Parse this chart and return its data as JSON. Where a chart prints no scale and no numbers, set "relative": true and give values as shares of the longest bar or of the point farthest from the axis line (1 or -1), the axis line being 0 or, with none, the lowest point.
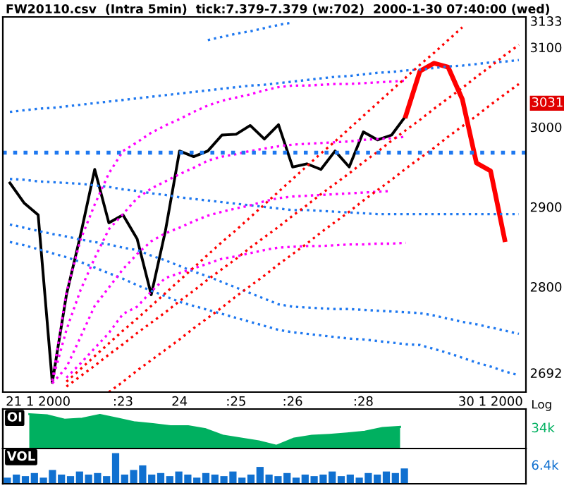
{
  "chart_data": [
    {
      "type": "line",
      "title": "FW20110.csv  (Intra 5min)  tick:7.379-7.379 (w:702)  2000-1-30 07:40:00 (wed)",
      "categories": [
        null,
        null,
        "21 1 2000",
        null,
        null,
        null,
        null,
        null,
        ":23",
        null,
        null,
        null,
        "24",
        null,
        null,
        null,
        ":25",
        null,
        null,
        null,
        ":26",
        null,
        null,
        null,
        null,
        ":28",
        null,
        null,
        null,
        null,
        null,
        null,
        null,
        null,
        "30 1 2000",
        null,
        null
      ],
      "ylim": [
        2668,
        3138
      ],
      "yticks": [
        3133,
        3100,
        3000,
        2900,
        2800,
        2692
      ],
      "grid": false,
      "legend": false,
      "marker": "none",
      "ref_lines": [
        {
          "axis": "y",
          "value": 2968,
          "color": "#1e78f0",
          "line_style": "dotted"
        }
      ],
      "annotations": [
        "3031",
        "Log"
      ],
      "series": [
        {
          "color": "#000000",
          "line_style": "solid",
          "values": [
            2930,
            2905,
            2890,
            2680,
            2790,
            2865,
            2947,
            2880,
            2890,
            2860,
            2790,
            2870,
            2970,
            2963,
            2970,
            2990,
            2991,
            3002,
            2985,
            3003,
            2950,
            2954,
            2947,
            2970,
            2950,
            2994,
            2984,
            2990,
            3014,
            null,
            null,
            null,
            null,
            null,
            null,
            null,
            null
          ]
        },
        {
          "color": "#ff0000",
          "line_style": "solid",
          "values": [
            null,
            null,
            null,
            null,
            null,
            null,
            null,
            null,
            null,
            null,
            null,
            null,
            null,
            null,
            null,
            null,
            null,
            null,
            null,
            null,
            null,
            null,
            null,
            null,
            null,
            null,
            null,
            null,
            3014,
            3070,
            3080,
            3075,
            3035,
            2955,
            2945,
            2859,
            null
          ]
        },
        {
          "color": "#1e78f0",
          "line_style": "dotted",
          "values": [
            3019,
            3021,
            3023,
            3024,
            3026,
            3028,
            3030,
            3032,
            3034,
            3036,
            3038,
            3040,
            3042,
            3044,
            3046,
            3048,
            3050,
            3052,
            3053,
            3055,
            3057,
            3059,
            3061,
            3063,
            3064,
            3066,
            3068,
            3069,
            3071,
            3072,
            3074,
            3076,
            3077,
            3079,
            3081,
            3082,
            3084
          ]
        },
        {
          "color": "#1e78f0",
          "line_style": "dotted",
          "values": [
            null,
            null,
            null,
            null,
            null,
            null,
            null,
            null,
            null,
            null,
            null,
            null,
            null,
            null,
            3109,
            3113,
            3117,
            3120,
            3124,
            3128,
            3131,
            null,
            null,
            null,
            null,
            null,
            null,
            null,
            null,
            null,
            null,
            null,
            null,
            null,
            null,
            null,
            null
          ]
        },
        {
          "color": "#1e78f0",
          "line_style": "dotted",
          "values": [
            2935,
            2934,
            2932,
            2931,
            2930,
            2929,
            2927,
            2925,
            2922,
            2920,
            2917,
            2915,
            2912,
            2910,
            2908,
            2906,
            2904,
            2902,
            2900,
            2898,
            2896,
            2896,
            2895,
            2894,
            2893,
            2892,
            2891,
            2891,
            2891,
            2891,
            2891,
            2891,
            2891,
            2891,
            2891,
            2891,
            2891
          ]
        },
        {
          "color": "#1e78f0",
          "line_style": "dotted",
          "values": [
            2878,
            2874,
            2870,
            2866,
            2863,
            2859,
            2856,
            2853,
            2849,
            2846,
            2839,
            2833,
            2826,
            2819,
            2813,
            2806,
            2799,
            2792,
            2785,
            2778,
            2775,
            2774,
            2773,
            2772,
            2772,
            2771,
            2770,
            2769,
            2768,
            2767,
            2764,
            2760,
            2756,
            2753,
            2749,
            2745,
            2741
          ]
        },
        {
          "color": "#1e78f0",
          "line_style": "dotted",
          "values": [
            2856,
            2852,
            2847,
            2842,
            2837,
            2831,
            2824,
            2817,
            2810,
            2802,
            2795,
            2788,
            2781,
            2776,
            2771,
            2766,
            2761,
            2756,
            2751,
            2746,
            2743,
            2741,
            2739,
            2737,
            2735,
            2734,
            2732,
            2730,
            2728,
            2727,
            2722,
            2717,
            2711,
            2705,
            2700,
            2694,
            2689
          ]
        },
        {
          "color": "#ff00ff",
          "line_style": "dotted",
          "values": [
            null,
            null,
            null,
            2682,
            2793,
            2859,
            2903,
            2942,
            2970,
            2981,
            2993,
            3002,
            3010,
            3019,
            3027,
            3033,
            3037,
            3041,
            3046,
            3050,
            3052,
            3052,
            3053,
            3054,
            3054,
            3055,
            3056,
            3057,
            3058,
            null,
            null,
            null,
            null,
            null,
            null,
            null,
            null
          ]
        },
        {
          "color": "#ff00ff",
          "line_style": "dotted",
          "values": [
            null,
            null,
            null,
            2682,
            2746,
            2796,
            2836,
            2872,
            2891,
            2911,
            2923,
            2932,
            2941,
            2949,
            2958,
            2963,
            2966,
            2970,
            2973,
            2976,
            2978,
            2979,
            2980,
            2981,
            2982,
            2984,
            2985,
            2986,
            2988,
            null,
            null,
            null,
            null,
            null,
            null,
            null,
            null
          ]
        },
        {
          "color": "#ff00ff",
          "line_style": "dotted",
          "values": [
            null,
            null,
            null,
            2679,
            2699,
            2737,
            2776,
            2799,
            2822,
            2841,
            2857,
            2867,
            2874,
            2882,
            2889,
            2894,
            2898,
            2902,
            2907,
            2911,
            2913,
            2914,
            2915,
            2916,
            2917,
            2918,
            2919,
            2920,
            null,
            null,
            null,
            null,
            null,
            null,
            null,
            null,
            null
          ]
        },
        {
          "color": "#ff00ff",
          "line_style": "dotted",
          "values": [
            null,
            null,
            null,
            null,
            2686,
            2704,
            2723,
            2742,
            2766,
            2775,
            2794,
            2811,
            2817,
            2823,
            2829,
            2835,
            2838,
            2842,
            2846,
            2849,
            2850,
            2851,
            2851,
            2852,
            2853,
            2853,
            2854,
            2854,
            2855,
            null,
            null,
            null,
            null,
            null,
            null,
            null,
            null
          ]
        },
        {
          "color": "#ff0000",
          "line_style": "dotted",
          "values": [
            null,
            null,
            null,
            null,
            2681,
            2697,
            2713,
            2729,
            2745,
            2760,
            2776,
            2792,
            2808,
            2824,
            2840,
            2856,
            2871,
            2887,
            2903,
            2919,
            2935,
            2951,
            2967,
            2982,
            2998,
            3014,
            3030,
            3046,
            3062,
            3078,
            3093,
            3109,
            3125,
            null,
            null,
            null,
            null
          ]
        },
        {
          "color": "#ff0000",
          "line_style": "dotted",
          "values": [
            null,
            null,
            null,
            null,
            2675,
            2688,
            2701,
            2715,
            2728,
            2742,
            2755,
            2768,
            2782,
            2795,
            2809,
            2822,
            2835,
            2849,
            2862,
            2875,
            2889,
            2902,
            2916,
            2929,
            2942,
            2956,
            2969,
            2983,
            2996,
            3009,
            3023,
            3036,
            3049,
            3063,
            3076,
            3090,
            3103
          ]
        },
        {
          "color": "#ff0000",
          "line_style": "dotted",
          "values": [
            null,
            null,
            null,
            null,
            null,
            null,
            null,
            2668,
            2681,
            2695,
            2708,
            2721,
            2734,
            2748,
            2761,
            2774,
            2788,
            2801,
            2814,
            2828,
            2841,
            2854,
            2868,
            2881,
            2894,
            2908,
            2921,
            2934,
            2948,
            2961,
            2974,
            2988,
            3001,
            3014,
            3028,
            3041,
            3054
          ]
        }
      ]
    },
    {
      "type": "area",
      "relative": true,
      "color": "#00b060",
      "annotations": [
        "OI",
        "34k"
      ],
      "categories": [
        null,
        null,
        null,
        null,
        null,
        null,
        null,
        null,
        null,
        null,
        null,
        null,
        null,
        null,
        null,
        null,
        null,
        null,
        null,
        null,
        null,
        null,
        null
      ],
      "values": [
        null,
        1.0,
        0.97,
        0.84,
        0.87,
        0.98,
        0.87,
        0.76,
        0.71,
        0.65,
        0.65,
        0.56,
        0.37,
        0.29,
        0.21,
        0.08,
        0.29,
        0.37,
        0.4,
        0.44,
        0.49,
        0.6,
        0.63
      ]
    },
    {
      "type": "bar",
      "relative": true,
      "color": "#1070d0",
      "annotations": [
        "VOL",
        "6.4k"
      ],
      "categories": [
        null,
        null,
        null,
        null,
        null,
        null,
        null,
        null,
        null,
        null,
        null,
        null,
        null,
        null,
        null,
        null,
        null,
        null,
        null,
        null,
        null,
        null,
        null,
        null,
        null,
        null,
        null,
        null,
        null,
        null,
        null,
        null,
        null,
        null,
        null,
        null,
        null,
        null,
        null,
        null,
        null,
        null,
        null,
        null,
        null
      ],
      "values": [
        0.2,
        0.3,
        0.25,
        0.35,
        0.2,
        0.45,
        0.3,
        0.25,
        0.4,
        0.3,
        0.35,
        0.25,
        1.0,
        0.3,
        0.45,
        0.6,
        0.3,
        0.35,
        0.25,
        0.4,
        0.3,
        0.2,
        0.35,
        0.3,
        0.25,
        0.4,
        0.2,
        0.3,
        0.55,
        0.3,
        0.25,
        0.35,
        0.2,
        0.3,
        0.25,
        0.3,
        0.4,
        0.25,
        0.3,
        0.2,
        0.35,
        0.3,
        0.4,
        0.35,
        0.5
      ]
    }
  ]
}
